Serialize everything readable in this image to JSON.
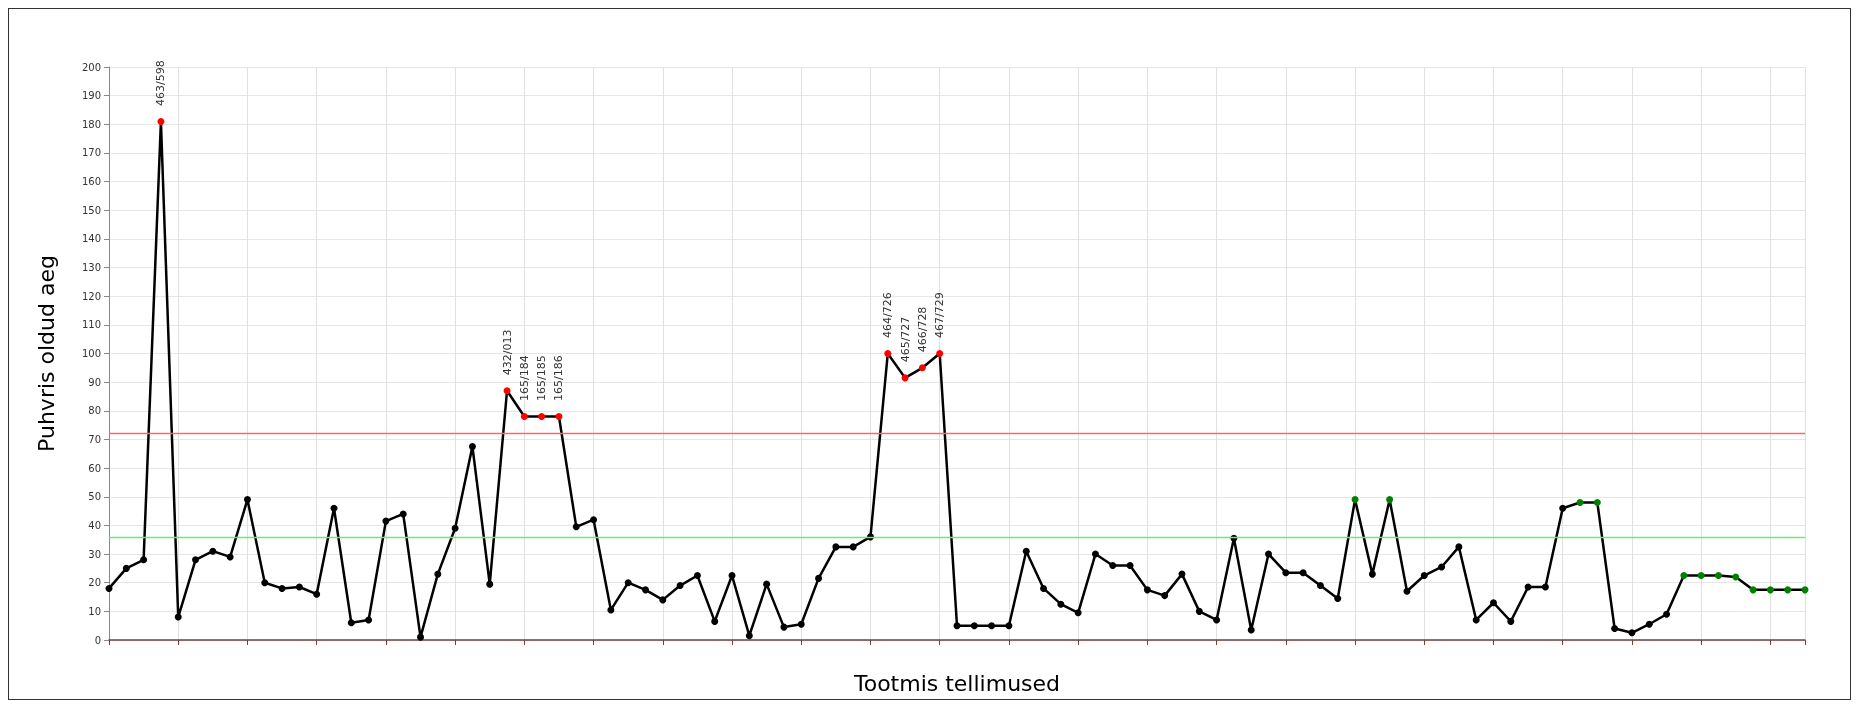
{
  "chart_data": {
    "type": "line",
    "xlabel": "Tootmis tellimused",
    "ylabel": "Puhvris oldud aeg",
    "categories": [
      null,
      null,
      null,
      null,
      null,
      null,
      null,
      null,
      null,
      null,
      null,
      null,
      null,
      null,
      null,
      null,
      null,
      null,
      null,
      null,
      null,
      null,
      null,
      null,
      null,
      null,
      null,
      null,
      null,
      null,
      null,
      null,
      null,
      null,
      null,
      null,
      null,
      null,
      null,
      null,
      null,
      null,
      null,
      null,
      null,
      null,
      null,
      null,
      null,
      null,
      null,
      null,
      null,
      null,
      null,
      null,
      null,
      null,
      null,
      null,
      null,
      null,
      null,
      null,
      null,
      null,
      null,
      null,
      null,
      null,
      null,
      null,
      null,
      null,
      null,
      null,
      null,
      null,
      null,
      null,
      null,
      null,
      null,
      null,
      null,
      null,
      null,
      null,
      null,
      null,
      null,
      null,
      null,
      null,
      null,
      null,
      null,
      null,
      null
    ],
    "series": [
      {
        "color": "#000000",
        "values": [
          18,
          25,
          28,
          181,
          8,
          28,
          31,
          29,
          49,
          20,
          18,
          18.5,
          16,
          46,
          6,
          7,
          41.5,
          44,
          1,
          23,
          39,
          67.5,
          19.5,
          87,
          78,
          78,
          78,
          39.5,
          42,
          10.5,
          20,
          17.5,
          14,
          19,
          22.5,
          6.5,
          22.5,
          1.5,
          19.5,
          4.5,
          5.5,
          21.5,
          32.5,
          32.5,
          36,
          100,
          91.5,
          95,
          100,
          5,
          5,
          5,
          5,
          31,
          18,
          12.5,
          9.5,
          30,
          26,
          26,
          17.5,
          15.5,
          23,
          10,
          7,
          35.5,
          3.5,
          30,
          23.5,
          23.5,
          19,
          14.5,
          49,
          23,
          49,
          17,
          22.5,
          25.5,
          32.5,
          7,
          13,
          6.5,
          18.5,
          18.5,
          46,
          48,
          48,
          4,
          2.5,
          5.5,
          9,
          22.5,
          22.5,
          22.5,
          22,
          17.5,
          17.5,
          17.5,
          17.5
        ],
        "colors": [
          "#000000",
          "#000000",
          "#000000",
          "#ff0000",
          "#000000",
          "#000000",
          "#000000",
          "#000000",
          "#000000",
          "#000000",
          "#000000",
          "#000000",
          "#000000",
          "#000000",
          "#000000",
          "#000000",
          "#000000",
          "#000000",
          "#000000",
          "#000000",
          "#000000",
          "#000000",
          "#000000",
          "#ff0000",
          "#ff0000",
          "#ff0000",
          "#ff0000",
          "#000000",
          "#000000",
          "#000000",
          "#000000",
          "#000000",
          "#000000",
          "#000000",
          "#000000",
          "#000000",
          "#000000",
          "#000000",
          "#000000",
          "#000000",
          "#000000",
          "#000000",
          "#000000",
          "#000000",
          "#000000",
          "#ff0000",
          "#ff0000",
          "#ff0000",
          "#ff0000",
          "#000000",
          "#000000",
          "#000000",
          "#000000",
          "#000000",
          "#000000",
          "#000000",
          "#000000",
          "#000000",
          "#000000",
          "#000000",
          "#000000",
          "#000000",
          "#000000",
          "#000000",
          "#000000",
          "#000000",
          "#000000",
          "#000000",
          "#000000",
          "#000000",
          "#000000",
          "#000000",
          "#008000",
          "#000000",
          "#008000",
          "#000000",
          "#000000",
          "#000000",
          "#000000",
          "#000000",
          "#000000",
          "#000000",
          "#000000",
          "#000000",
          "#000000",
          "#008000",
          "#008000",
          "#000000",
          "#000000",
          "#000000",
          "#000000",
          "#008000",
          "#008000",
          "#008000",
          "#008000",
          "#008000",
          "#008000",
          "#008000",
          "#008000"
        ],
        "value_labels": [
          null,
          null,
          null,
          "463/598",
          null,
          null,
          null,
          null,
          null,
          null,
          null,
          null,
          null,
          null,
          null,
          null,
          null,
          null,
          null,
          null,
          null,
          null,
          null,
          "432/013",
          "165/184",
          "165/185",
          "165/186",
          null,
          null,
          null,
          null,
          null,
          null,
          null,
          null,
          null,
          null,
          null,
          null,
          null,
          null,
          null,
          null,
          null,
          null,
          "464/726",
          "465/727",
          "466/728",
          "467/729",
          null,
          null,
          null,
          null,
          null,
          null,
          null,
          null,
          null,
          null,
          null,
          null,
          null,
          null,
          null,
          null,
          null,
          null,
          null,
          null,
          null,
          null,
          null,
          null,
          null,
          null,
          null,
          null,
          null,
          null,
          null,
          null,
          null,
          null,
          null,
          null,
          null,
          null,
          null,
          null,
          null,
          null,
          null,
          null,
          null,
          null,
          null,
          null,
          null,
          null
        ]
      }
    ],
    "ylim": [
      0,
      200
    ],
    "yticks": [
      0,
      10,
      20,
      30,
      40,
      50,
      60,
      70,
      80,
      90,
      100,
      110,
      120,
      130,
      140,
      150,
      160,
      170,
      180,
      190,
      200
    ],
    "ref_lines": [
      {
        "axis": "y",
        "value": 72,
        "color": "#ff6666"
      },
      {
        "axis": "y",
        "value": 36,
        "color": "#66ee66"
      }
    ],
    "grid": true,
    "marker": "circle",
    "line_style": "solid",
    "tick_labels": "y"
  }
}
